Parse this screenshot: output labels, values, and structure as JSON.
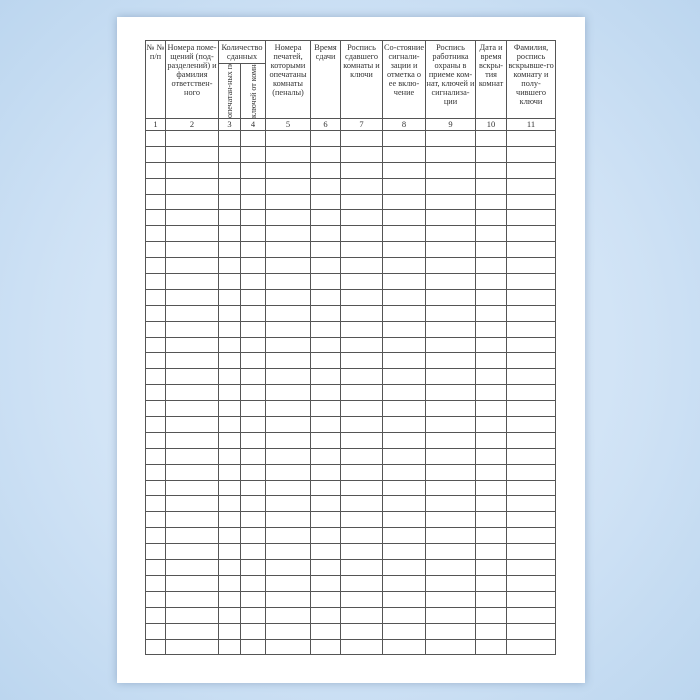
{
  "headers": {
    "c1": "№ № п/п",
    "c2": "Номера поме-щений (под-разделений) и фамилия ответствен-ного",
    "c34": "Количество сданных",
    "c3": "опечатан-ных пеналов",
    "c4": "ключей от комнат",
    "c5": "Номера печатей, которыми опечатаны комнаты (пеналы)",
    "c6": "Время сдачи",
    "c7": "Роспись сдавшего комнаты и ключи",
    "c8": "Со-стояние сигнали-зации и отметка о ее вклю-чение",
    "c9": "Роспись работника охраны в приеме ком-нат, ключей и сигнализа-ции",
    "c10": "Дата и время вскры-тия комнат",
    "c11": "Фамилия, роспись вскрывше-го комнату и полу-чившего ключи"
  },
  "column_numbers": [
    "1",
    "2",
    "3",
    "4",
    "5",
    "6",
    "7",
    "8",
    "9",
    "10",
    "11"
  ],
  "empty_rows": 33
}
